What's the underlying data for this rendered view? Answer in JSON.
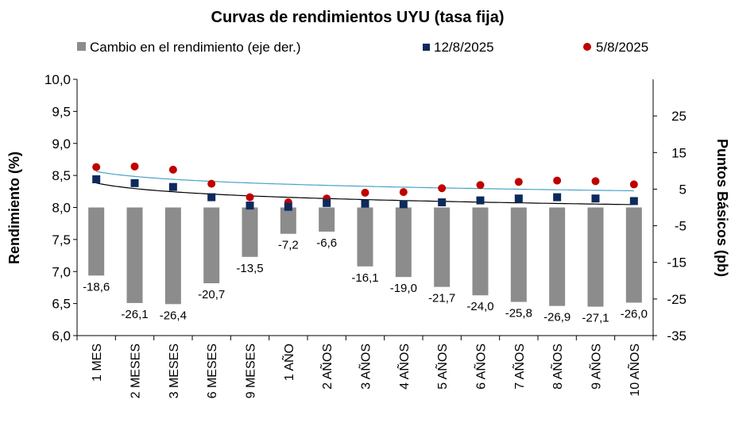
{
  "chart_data": {
    "type": "bar",
    "title": "Curvas de rendimientos UYU (tasa fija)",
    "ylabel": "Rendimiento (%)",
    "y2label": "Puntos Básicos (pb)",
    "ylim": [
      6.0,
      10.0
    ],
    "y2lim": [
      -35,
      35
    ],
    "yticks": [
      "6,0",
      "6,5",
      "7,0",
      "7,5",
      "8,0",
      "8,5",
      "9,0",
      "9,5",
      "10,0"
    ],
    "y2ticks": [
      "-35",
      "-25",
      "-15",
      "-5",
      "5",
      "15",
      "25"
    ],
    "legend_position": "top",
    "grid": false,
    "categories": [
      "1 MES",
      "2 MESES",
      "3 MESES",
      "6 MESES",
      "9 MESES",
      "1 AÑO",
      "2 AÑOS",
      "3 AÑOS",
      "4 AÑOS",
      "5 AÑOS",
      "6 AÑOS",
      "7 AÑOS",
      "8 AÑOS",
      "9 AÑOS",
      "10 AÑOS"
    ],
    "series": [
      {
        "name": "Cambio en el rendimiento (eje der.)",
        "type": "bar",
        "axis": "right",
        "color": "#8c8c8c",
        "values": [
          -18.6,
          -26.1,
          -26.4,
          -20.7,
          -13.5,
          -7.2,
          -6.6,
          -16.1,
          -19.0,
          -21.7,
          -24.0,
          -25.8,
          -26.9,
          -27.1,
          -26.0
        ],
        "labels": [
          "-18,6",
          "-26,1",
          "-26,4",
          "-20,7",
          "-13,5",
          "-7,2",
          "-6,6",
          "-16,1",
          "-19,0",
          "-21,7",
          "-24,0",
          "-25,8",
          "-26,9",
          "-27,1",
          "-26,0"
        ]
      },
      {
        "name": "12/8/2025",
        "type": "scatter",
        "axis": "left",
        "marker": "square",
        "color": "#0d2a5c",
        "values": [
          8.44,
          8.38,
          8.32,
          8.16,
          8.03,
          8.01,
          8.07,
          8.06,
          8.05,
          8.08,
          8.11,
          8.14,
          8.16,
          8.14,
          8.1
        ],
        "trend_color": "#000000"
      },
      {
        "name": "5/8/2025",
        "type": "scatter",
        "axis": "left",
        "marker": "circle",
        "color": "#c00000",
        "values": [
          8.63,
          8.64,
          8.59,
          8.37,
          8.16,
          8.08,
          8.14,
          8.23,
          8.24,
          8.3,
          8.35,
          8.4,
          8.42,
          8.41,
          8.36
        ],
        "trend_color": "#4aa3c8"
      }
    ]
  }
}
